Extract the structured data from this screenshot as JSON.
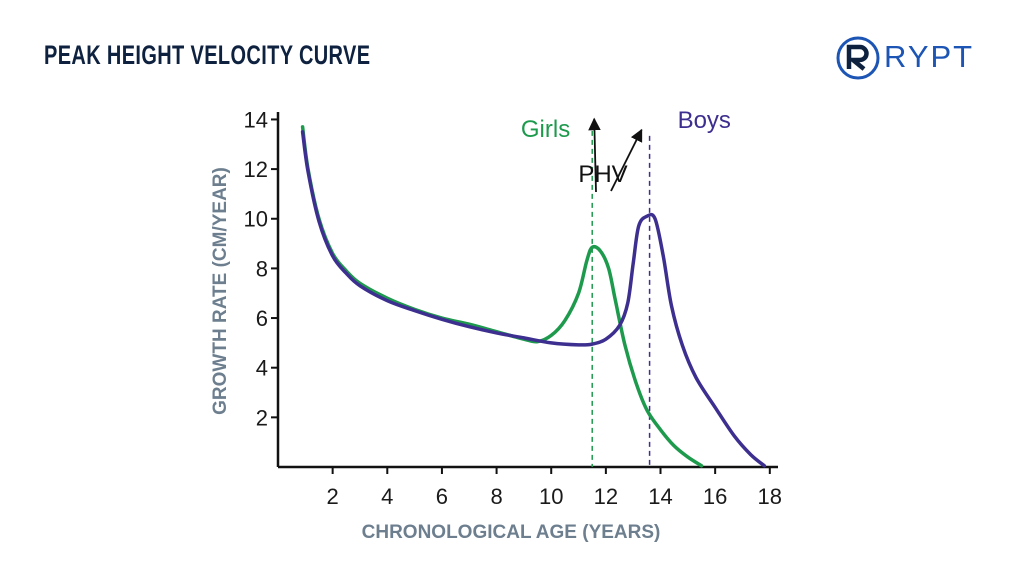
{
  "header": {
    "title": "PEAK HEIGHT VELOCITY CURVE"
  },
  "logo": {
    "text": "RYPT",
    "color": "#1d55b5"
  },
  "chart_data": {
    "type": "line",
    "xlabel": "CHRONOLOGICAL AGE (YEARS)",
    "ylabel": "GROWTH RATE (CM/YEAR)",
    "xlim": [
      0,
      18.3
    ],
    "ylim": [
      0,
      14.3
    ],
    "x_ticks": [
      2,
      4,
      6,
      8,
      10,
      12,
      14,
      16,
      18
    ],
    "y_ticks": [
      2,
      4,
      6,
      8,
      10,
      12,
      14
    ],
    "grid": false,
    "annotation": {
      "text": "PHV",
      "points_to": [
        "Girls",
        "Boys"
      ]
    },
    "series": [
      {
        "name": "Girls",
        "color": "#1e9a4d",
        "peak_age": 11.5,
        "points": [
          [
            0.9,
            13.7
          ],
          [
            1.1,
            12.0
          ],
          [
            1.5,
            10.0
          ],
          [
            2,
            8.6
          ],
          [
            2.5,
            7.9
          ],
          [
            3,
            7.4
          ],
          [
            4,
            6.8
          ],
          [
            5,
            6.35
          ],
          [
            6,
            6.0
          ],
          [
            7,
            5.75
          ],
          [
            8,
            5.45
          ],
          [
            9,
            5.15
          ],
          [
            9.5,
            5.05
          ],
          [
            10,
            5.3
          ],
          [
            10.5,
            5.9
          ],
          [
            11,
            7.0
          ],
          [
            11.3,
            8.3
          ],
          [
            11.5,
            8.85
          ],
          [
            11.8,
            8.7
          ],
          [
            12.1,
            8.0
          ],
          [
            12.35,
            6.7
          ],
          [
            12.7,
            4.9
          ],
          [
            13.1,
            3.4
          ],
          [
            13.5,
            2.3
          ],
          [
            14,
            1.5
          ],
          [
            14.5,
            0.85
          ],
          [
            15,
            0.4
          ],
          [
            15.5,
            0.05
          ]
        ]
      },
      {
        "name": "Boys",
        "color": "#3d2f8f",
        "peak_age": 13.6,
        "points": [
          [
            0.9,
            13.5
          ],
          [
            1.1,
            11.9
          ],
          [
            1.5,
            9.9
          ],
          [
            2,
            8.5
          ],
          [
            2.5,
            7.8
          ],
          [
            3,
            7.3
          ],
          [
            4,
            6.7
          ],
          [
            5,
            6.3
          ],
          [
            6,
            5.95
          ],
          [
            7,
            5.65
          ],
          [
            8,
            5.4
          ],
          [
            9,
            5.2
          ],
          [
            10,
            5.0
          ],
          [
            11,
            4.92
          ],
          [
            11.5,
            4.95
          ],
          [
            12,
            5.15
          ],
          [
            12.5,
            5.7
          ],
          [
            12.8,
            6.6
          ],
          [
            13,
            8.2
          ],
          [
            13.2,
            9.7
          ],
          [
            13.5,
            10.1
          ],
          [
            13.8,
            10.0
          ],
          [
            14.1,
            8.5
          ],
          [
            14.4,
            6.5
          ],
          [
            14.8,
            4.9
          ],
          [
            15.3,
            3.6
          ],
          [
            16,
            2.4
          ],
          [
            16.7,
            1.25
          ],
          [
            17.3,
            0.5
          ],
          [
            17.8,
            0.05
          ]
        ]
      }
    ]
  }
}
